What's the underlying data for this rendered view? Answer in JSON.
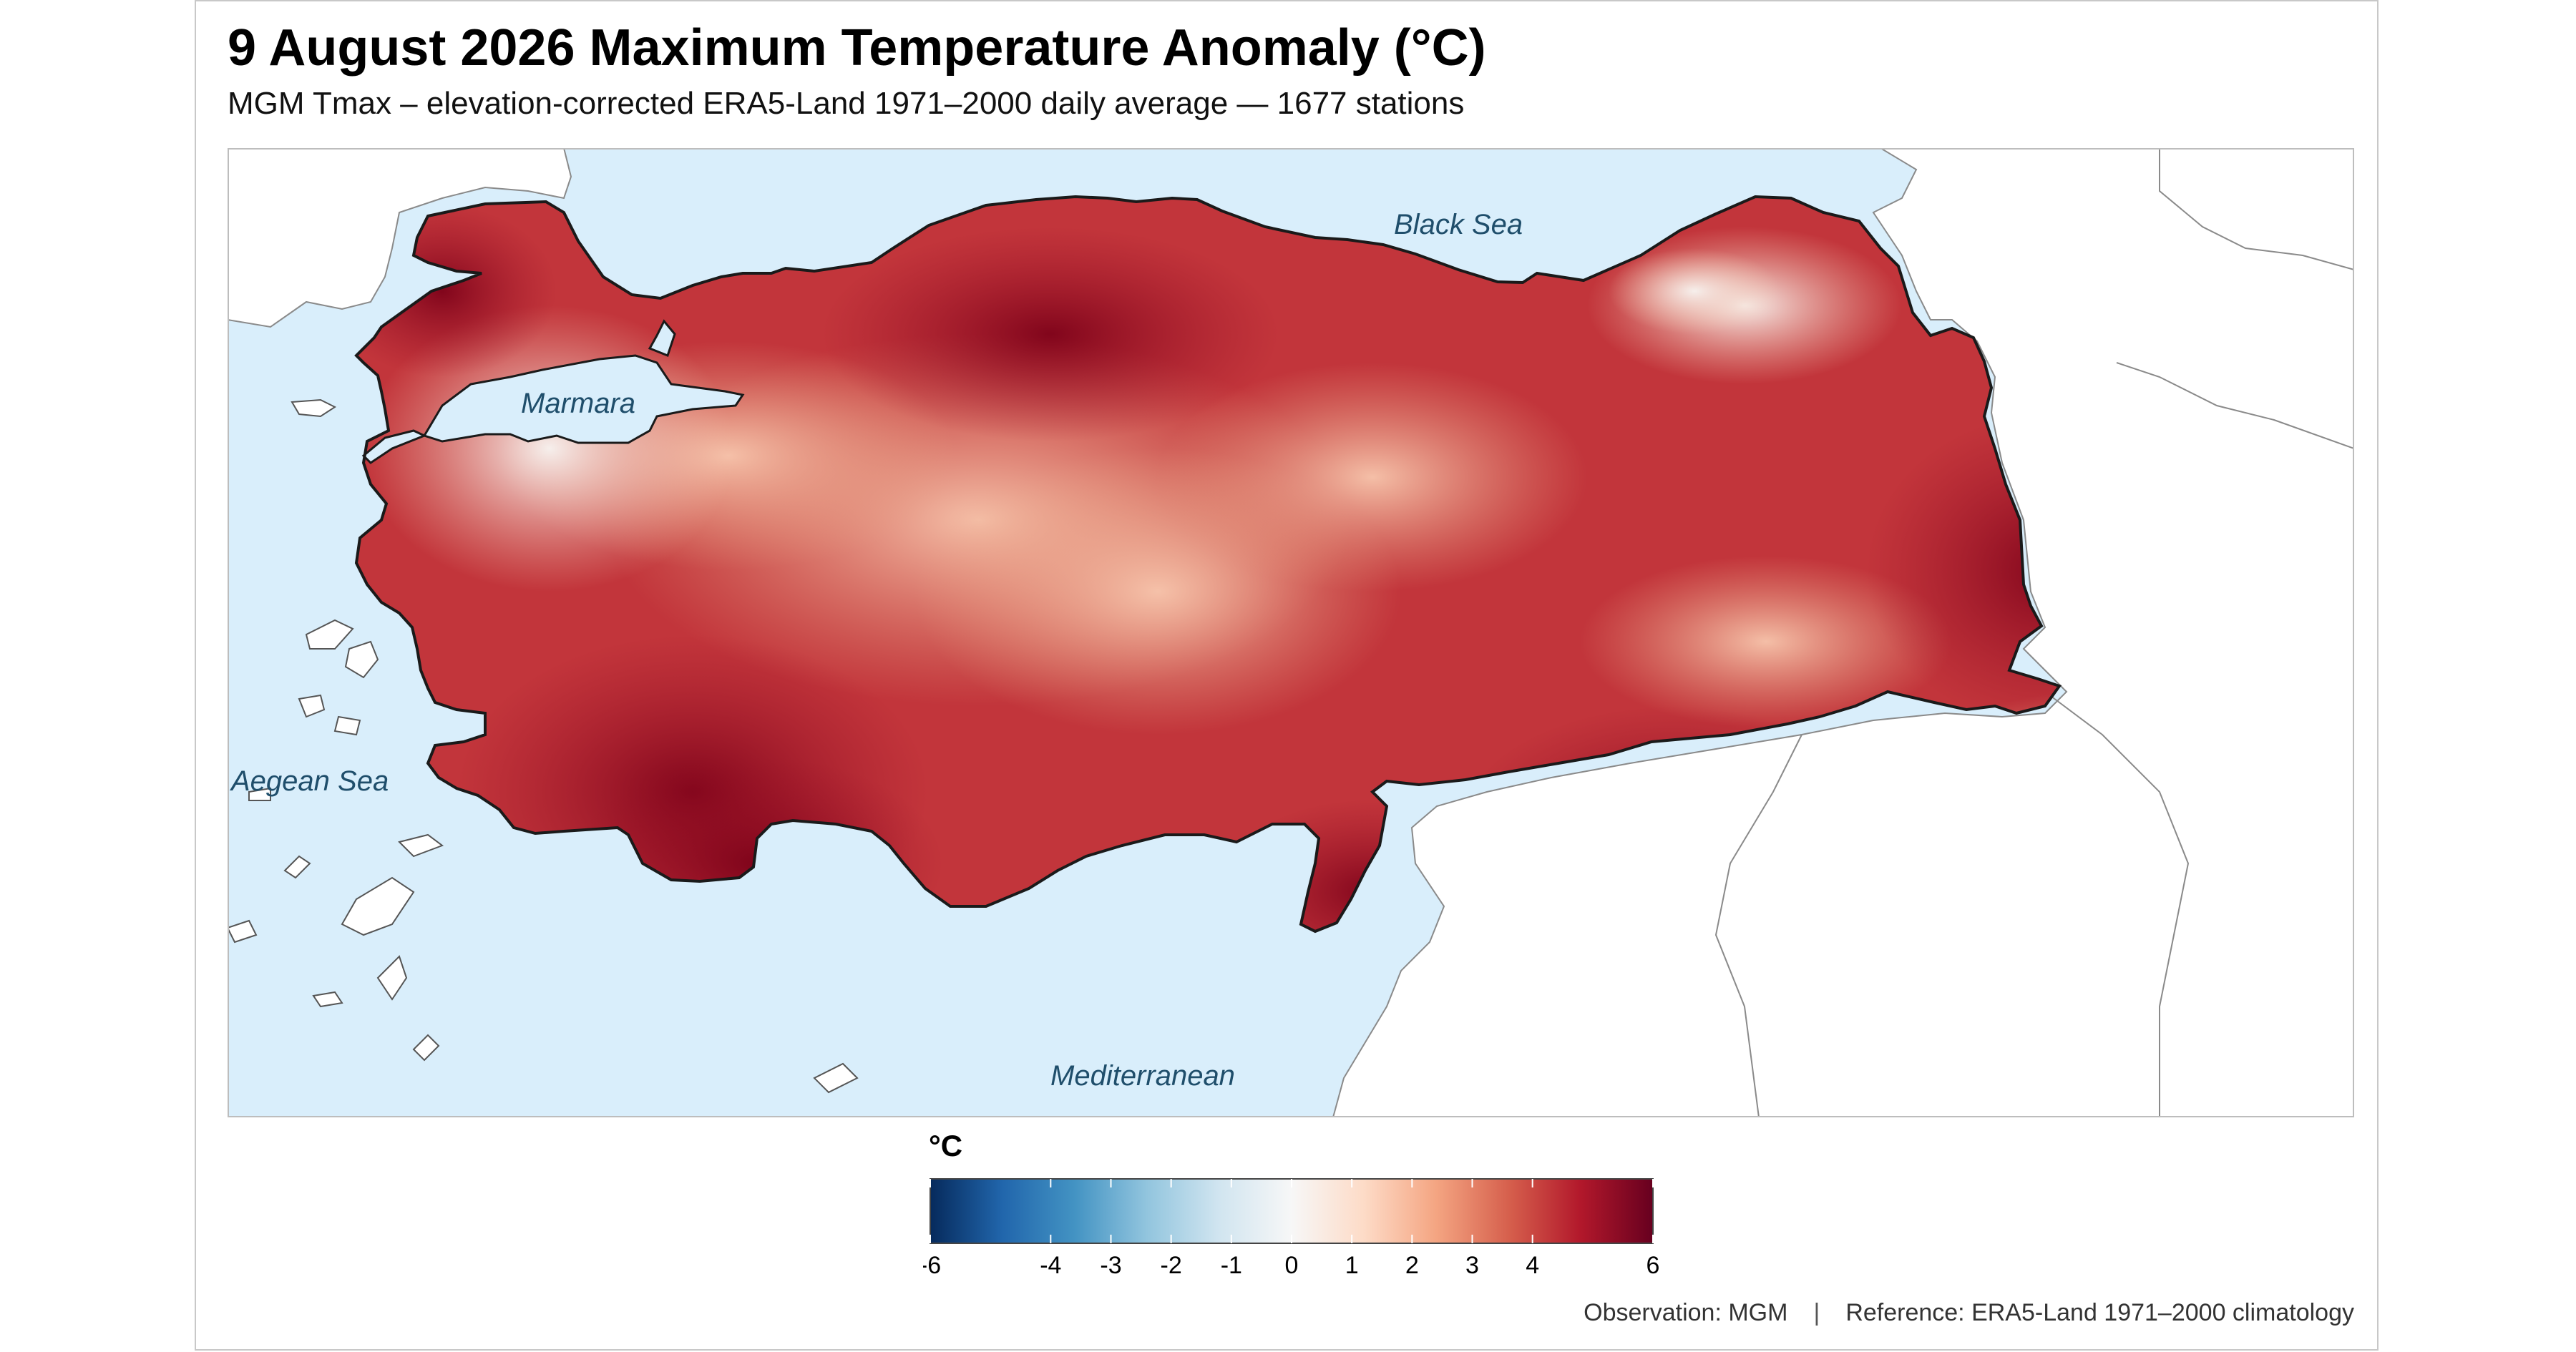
{
  "title": "9 August 2026 Maximum Temperature Anomaly (°C)",
  "subtitle": "MGM Tmax – elevation-corrected ERA5-Land 1971–2000 daily average — 1677 stations",
  "map": {
    "labels": {
      "black_sea": "Black Sea",
      "marmara": "Marmara",
      "aegean": "Aegean Sea",
      "mediterranean": "Mediterranean"
    },
    "colors": {
      "sea": "#d9eefb",
      "land_outside": "#ffffff",
      "border": "#1a1a1a",
      "coast_outside": "#888888",
      "label_text": "#1f4e6b"
    },
    "dominant_anomaly_range": "1 to 5 °C"
  },
  "legend": {
    "unit": "°C",
    "ticks": [
      "-6",
      "-4",
      "-3",
      "-2",
      "-1",
      "0",
      "1",
      "2",
      "3",
      "4",
      "6"
    ],
    "tick_values": [
      -6,
      -4,
      -3,
      -2,
      -1,
      0,
      1,
      2,
      3,
      4,
      6
    ],
    "range": [
      -6,
      6
    ],
    "colors": [
      "#062a5c",
      "#2166ac",
      "#4393c3",
      "#92c5de",
      "#d1e5f0",
      "#f7f7f7",
      "#fddbc7",
      "#f4a582",
      "#d6604d",
      "#b2182b",
      "#67001f"
    ]
  },
  "footer": {
    "observation": "Observation: MGM",
    "separator": "|",
    "reference": "Reference: ERA5-Land 1971–2000 climatology"
  }
}
